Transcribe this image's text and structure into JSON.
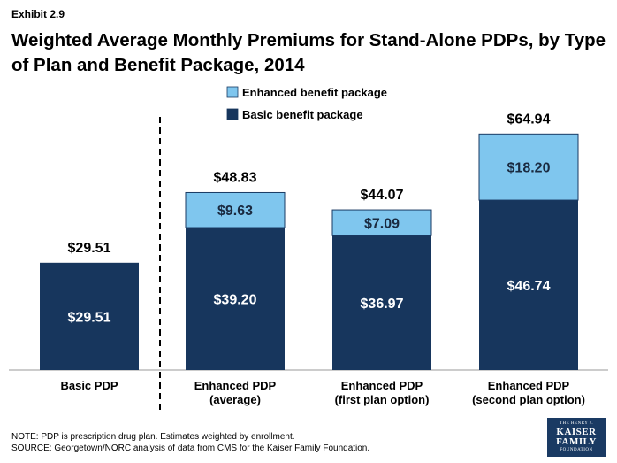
{
  "exhibit": "Exhibit 2.9",
  "title": "Weighted Average Monthly Premiums for Stand-Alone PDPs, by Type of Plan and Benefit Package, 2014",
  "colors": {
    "basic": "#17365d",
    "enhanced": "#7fc6ee",
    "text_on_bar": "#ffffff",
    "divider": "#000000"
  },
  "chart_data": {
    "type": "bar",
    "stacked": true,
    "categories": [
      [
        "Basic PDP"
      ],
      [
        "Enhanced PDP",
        "(average)"
      ],
      [
        "Enhanced PDP",
        "(first plan option)"
      ],
      [
        "Enhanced PDP",
        "(second plan option)"
      ]
    ],
    "series": [
      {
        "name": "Basic benefit package",
        "values": [
          29.51,
          39.2,
          36.97,
          46.74
        ],
        "labels": [
          "$29.51",
          "$39.20",
          "$36.97",
          "$46.74"
        ]
      },
      {
        "name": "Enhanced benefit package",
        "values": [
          0,
          9.63,
          7.09,
          18.2
        ],
        "labels": [
          "",
          "$9.63",
          "$7.09",
          "$18.20"
        ]
      }
    ],
    "totals": [
      "$29.51",
      "$48.83",
      "$44.07",
      "$64.94"
    ],
    "ylim": [
      0,
      75
    ],
    "legend": "top-center",
    "divider_after_category": 0
  },
  "footnote": {
    "note": "NOTE: PDP is prescription drug plan.  Estimates weighted by enrollment.",
    "source": "SOURCE: Georgetown/NORC analysis of data from CMS for the Kaiser Family Foundation."
  },
  "logo": {
    "line1": "THE HENRY J.",
    "line2": "KAISER",
    "line3": "FAMILY",
    "line4": "FOUNDATION"
  }
}
